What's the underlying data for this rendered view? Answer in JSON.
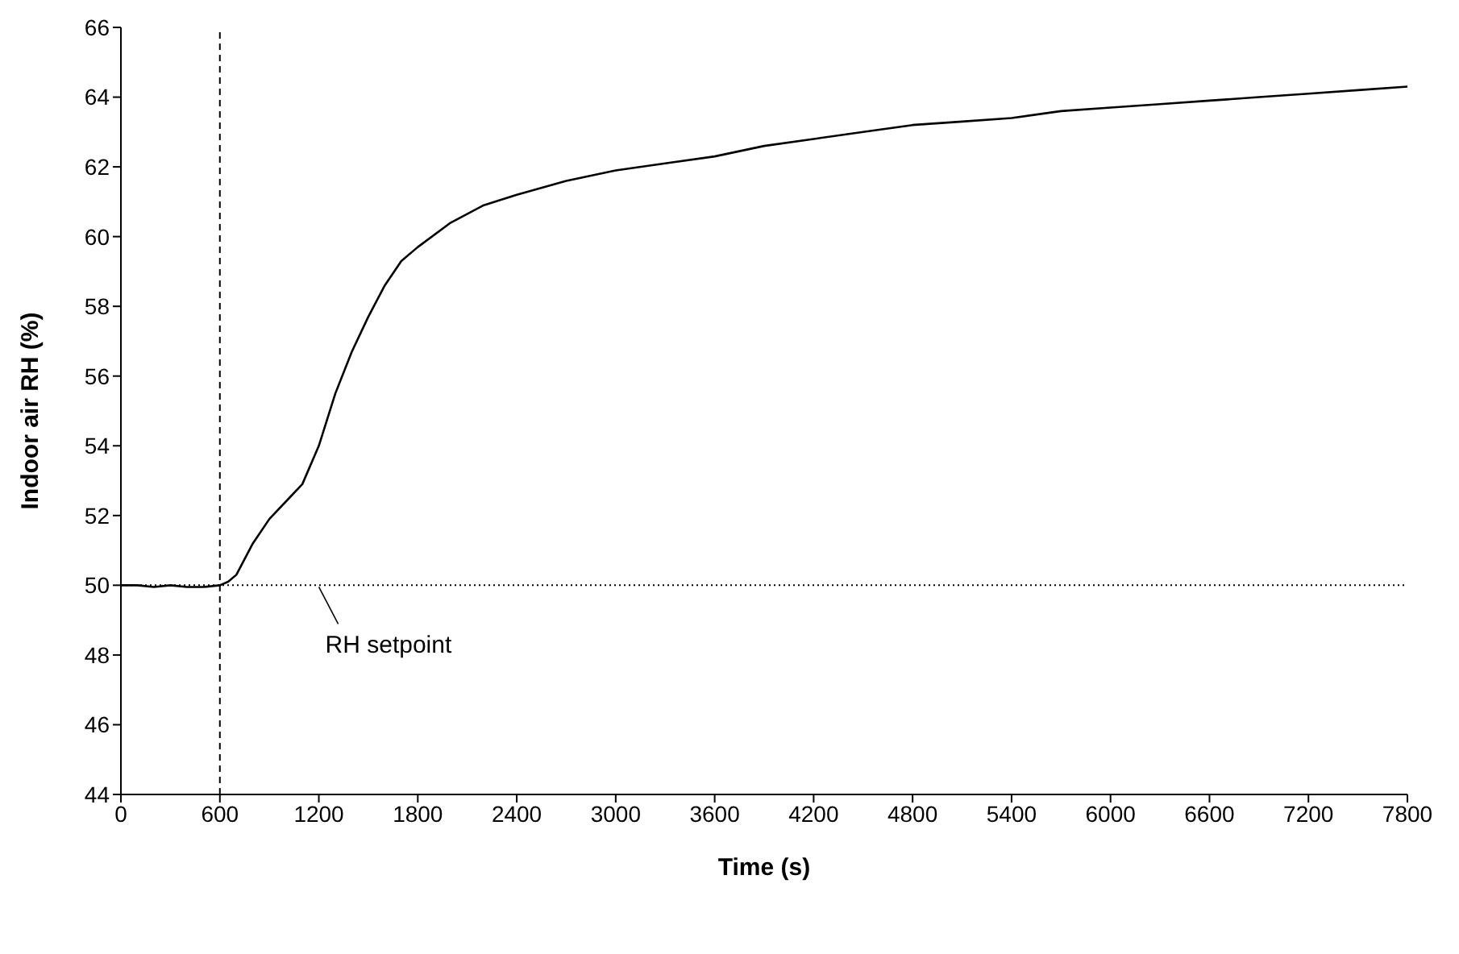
{
  "chart_data": {
    "type": "line",
    "xlabel": "Time (s)",
    "ylabel": "Indoor air RH (%)",
    "xlim": [
      0,
      7800
    ],
    "xticks": [
      0,
      600,
      1200,
      1800,
      2400,
      3000,
      3600,
      4200,
      4800,
      5400,
      6000,
      6600,
      7200,
      7800
    ],
    "ylim": [
      44,
      66
    ],
    "yticks": [
      44,
      46,
      48,
      50,
      52,
      54,
      56,
      58,
      60,
      62,
      64,
      66
    ],
    "grid": false,
    "legend": false,
    "marker": "none",
    "line_style": "solid",
    "series": [
      {
        "color": "#000000",
        "x": [
          0,
          100,
          200,
          300,
          400,
          500,
          600,
          650,
          700,
          800,
          900,
          1000,
          1100,
          1200,
          1300,
          1400,
          1500,
          1600,
          1700,
          1800,
          2000,
          2200,
          2400,
          2700,
          3000,
          3300,
          3600,
          3900,
          4200,
          4500,
          4800,
          5100,
          5400,
          5700,
          6000,
          6300,
          6600,
          6900,
          7200,
          7500,
          7800
        ],
        "values": [
          50.0,
          50.0,
          49.95,
          50.0,
          49.95,
          49.95,
          50.0,
          50.1,
          50.3,
          51.2,
          51.9,
          52.4,
          52.9,
          54.0,
          55.5,
          56.7,
          57.7,
          58.6,
          59.3,
          59.7,
          60.4,
          60.9,
          61.2,
          61.6,
          61.9,
          62.1,
          62.3,
          62.6,
          62.8,
          63.0,
          63.2,
          63.3,
          63.4,
          63.6,
          63.7,
          63.8,
          63.9,
          64.0,
          64.1,
          64.2,
          64.3
        ]
      }
    ],
    "ref_lines": [
      {
        "axis": "x",
        "value": 600,
        "line_style": "dashed",
        "color": "#000000"
      },
      {
        "axis": "y",
        "value": 50,
        "line_style": "dotted",
        "color": "#000000"
      }
    ],
    "annotations": [
      {
        "text": "RH setpoint",
        "x": 1200,
        "y": 50
      }
    ]
  }
}
